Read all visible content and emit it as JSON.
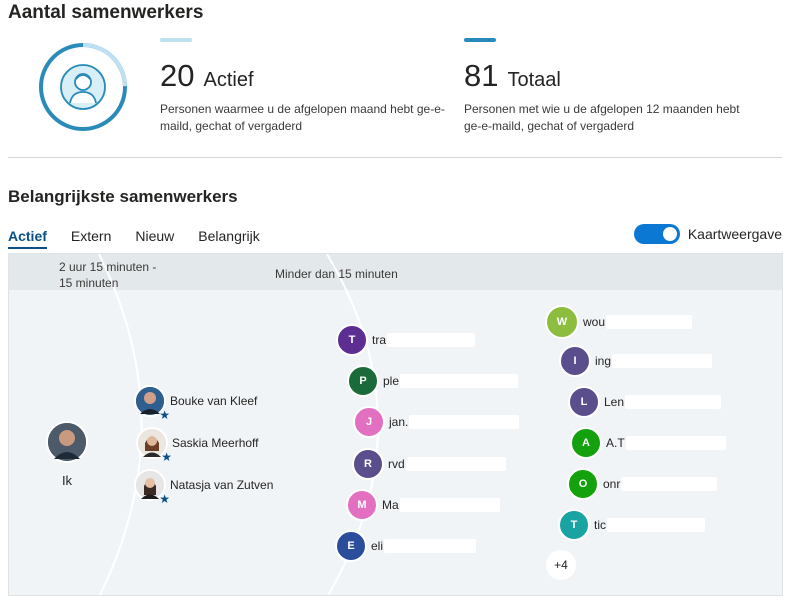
{
  "page": {
    "title": "Aantal samenwerkers",
    "subtitle": "Belangrijkste samenwerkers"
  },
  "stats": {
    "active": {
      "number": "20",
      "label": "Actief",
      "description": "Personen waarmee u de afgelopen maand hebt ge-e-maild, gechat of vergaderd",
      "fraction": 0.247,
      "color": "#bfe0f0"
    },
    "total": {
      "number": "81",
      "label": "Totaal",
      "description": "Personen met wie u de afgelopen 12 maanden hebt ge-e-maild, gechat of vergaderd",
      "color": "#2a8aba"
    }
  },
  "tabs": [
    {
      "label": "Actief",
      "active": true
    },
    {
      "label": "Extern",
      "active": false
    },
    {
      "label": "Nieuw",
      "active": false
    },
    {
      "label": "Belangrijk",
      "active": false
    }
  ],
  "toggle": {
    "label": "Kaartweergave",
    "on": true
  },
  "zones": {
    "zone1": "2 uur 15 minuten -\n15 minuten",
    "zone2": "Minder dan 15 minuten"
  },
  "me": {
    "label": "Ik"
  },
  "inner": [
    {
      "name": "Bouke van Kleef",
      "starred": true
    },
    {
      "name": "Saskia Meerhoff",
      "starred": true
    },
    {
      "name": "Natasja van Zutven",
      "starred": true
    }
  ],
  "middle": [
    {
      "initial": "T",
      "text": "tra",
      "color": "#5c2e91"
    },
    {
      "initial": "P",
      "text": "ple",
      "color": "#1b6b3a"
    },
    {
      "initial": "J",
      "text": "jan.",
      "color": "#e36fc0"
    },
    {
      "initial": "R",
      "text": "rvd",
      "color": "#5a4e8c"
    },
    {
      "initial": "M",
      "text": "Ma",
      "color": "#e36fc0"
    },
    {
      "initial": "E",
      "text": "eli",
      "color": "#2a4d9c"
    }
  ],
  "outer": [
    {
      "initial": "W",
      "text": "wou",
      "color": "#8cbd3f"
    },
    {
      "initial": "I",
      "text": "ing",
      "color": "#5a4e8c"
    },
    {
      "initial": "L",
      "text": "Len",
      "color": "#5a4e8c"
    },
    {
      "initial": "A",
      "text": "A.T",
      "color": "#13a10e"
    },
    {
      "initial": "O",
      "text": "onr",
      "color": "#13a10e"
    },
    {
      "initial": "T",
      "text": "tic",
      "color": "#1aa3a3"
    }
  ],
  "more": {
    "label": "+4"
  }
}
